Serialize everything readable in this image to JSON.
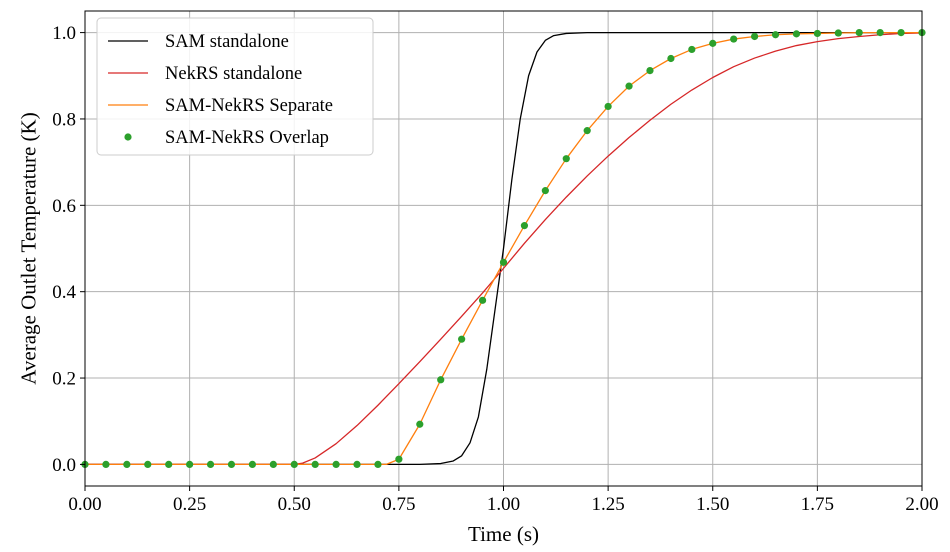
{
  "chart_data": {
    "type": "line",
    "title": "",
    "xlabel": "Time (s)",
    "ylabel": "Average Outlet Temperature (K)",
    "xlim": [
      0.0,
      2.0
    ],
    "ylim": [
      -0.05,
      1.05
    ],
    "xticks": [
      0.0,
      0.25,
      0.5,
      0.75,
      1.0,
      1.25,
      1.5,
      1.75,
      2.0
    ],
    "xtick_labels": [
      "0.00",
      "0.25",
      "0.50",
      "0.75",
      "1.00",
      "1.25",
      "1.50",
      "1.75",
      "2.00"
    ],
    "yticks": [
      0.0,
      0.2,
      0.4,
      0.6,
      0.8,
      1.0
    ],
    "ytick_labels": [
      "0.0",
      "0.2",
      "0.4",
      "0.6",
      "0.8",
      "1.0"
    ],
    "grid": true,
    "legend_position": "top-left",
    "series": [
      {
        "name": "SAM standalone",
        "style": "line",
        "color": "#000000",
        "x": [
          0.0,
          0.5,
          0.8,
          0.85,
          0.88,
          0.9,
          0.92,
          0.94,
          0.96,
          0.98,
          1.0,
          1.02,
          1.04,
          1.06,
          1.08,
          1.1,
          1.12,
          1.15,
          1.2,
          1.3,
          1.5,
          2.0
        ],
        "y": [
          0.0,
          0.0,
          0.0,
          0.002,
          0.008,
          0.02,
          0.05,
          0.11,
          0.22,
          0.36,
          0.5,
          0.66,
          0.8,
          0.9,
          0.955,
          0.982,
          0.993,
          0.998,
          1.0,
          1.0,
          1.0,
          1.0
        ]
      },
      {
        "name": "NekRS standalone",
        "style": "line",
        "color": "#d62728",
        "x": [
          0.0,
          0.5,
          0.52,
          0.55,
          0.6,
          0.65,
          0.7,
          0.75,
          0.8,
          0.85,
          0.9,
          0.95,
          1.0,
          1.05,
          1.1,
          1.15,
          1.2,
          1.25,
          1.3,
          1.35,
          1.4,
          1.45,
          1.5,
          1.55,
          1.6,
          1.65,
          1.7,
          1.75,
          1.8,
          1.85,
          1.9,
          1.95,
          2.0
        ],
        "y": [
          0.0,
          0.0,
          0.003,
          0.015,
          0.048,
          0.09,
          0.137,
          0.187,
          0.238,
          0.29,
          0.343,
          0.397,
          0.454,
          0.512,
          0.567,
          0.619,
          0.668,
          0.714,
          0.757,
          0.797,
          0.834,
          0.867,
          0.896,
          0.921,
          0.941,
          0.957,
          0.97,
          0.979,
          0.986,
          0.991,
          0.995,
          0.998,
          0.999
        ]
      },
      {
        "name": "SAM-NekRS Separate",
        "style": "line",
        "color": "#ff7f0e",
        "x": [
          0.0,
          0.7,
          0.72,
          0.75,
          0.8,
          0.85,
          0.9,
          0.95,
          1.0,
          1.05,
          1.1,
          1.15,
          1.2,
          1.25,
          1.3,
          1.35,
          1.4,
          1.45,
          1.5,
          1.55,
          1.6,
          1.65,
          1.7,
          1.75,
          1.8,
          1.85,
          1.9,
          1.95,
          2.0
        ],
        "y": [
          0.0,
          0.0,
          0.0,
          0.012,
          0.093,
          0.196,
          0.29,
          0.38,
          0.468,
          0.553,
          0.634,
          0.708,
          0.773,
          0.829,
          0.876,
          0.912,
          0.94,
          0.961,
          0.975,
          0.985,
          0.991,
          0.995,
          0.997,
          0.998,
          0.999,
          1.0,
          1.0,
          1.0,
          1.0
        ]
      },
      {
        "name": "SAM-NekRS Overlap",
        "style": "markers",
        "color": "#2ca02c",
        "x": [
          0.0,
          0.05,
          0.1,
          0.15,
          0.2,
          0.25,
          0.3,
          0.35,
          0.4,
          0.45,
          0.5,
          0.55,
          0.6,
          0.65,
          0.7,
          0.75,
          0.8,
          0.85,
          0.9,
          0.95,
          1.0,
          1.05,
          1.1,
          1.15,
          1.2,
          1.25,
          1.3,
          1.35,
          1.4,
          1.45,
          1.5,
          1.55,
          1.6,
          1.65,
          1.7,
          1.75,
          1.8,
          1.85,
          1.9,
          1.95,
          2.0
        ],
        "y": [
          0.0,
          0.0,
          0.0,
          0.0,
          0.0,
          0.0,
          0.0,
          0.0,
          0.0,
          0.0,
          0.0,
          0.0,
          0.0,
          0.0,
          0.0,
          0.012,
          0.093,
          0.196,
          0.29,
          0.38,
          0.468,
          0.553,
          0.634,
          0.708,
          0.773,
          0.829,
          0.876,
          0.912,
          0.94,
          0.961,
          0.975,
          0.985,
          0.991,
          0.995,
          0.997,
          0.998,
          0.999,
          1.0,
          1.0,
          1.0,
          1.0
        ]
      }
    ]
  }
}
